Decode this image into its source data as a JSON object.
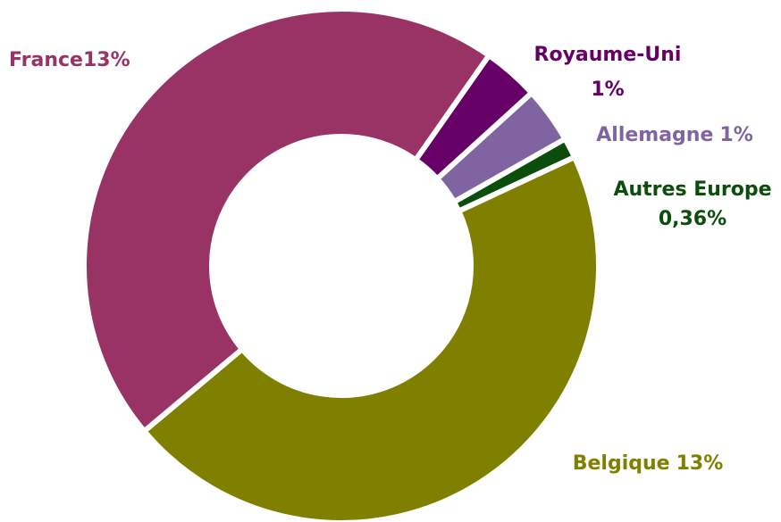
{
  "chart_data": {
    "type": "donut",
    "categories": [
      "Royaume-Uni",
      "Allemagne",
      "Autres Europe",
      "Belgique",
      "France"
    ],
    "values": [
      1,
      1,
      0.36,
      13,
      13
    ],
    "value_labels": [
      "1%",
      "1%",
      "0,36%",
      "13%",
      "13%"
    ],
    "colors": [
      "#660066",
      "#8064a2",
      "#0b4d0b",
      "#808000",
      "#993366"
    ]
  }
}
